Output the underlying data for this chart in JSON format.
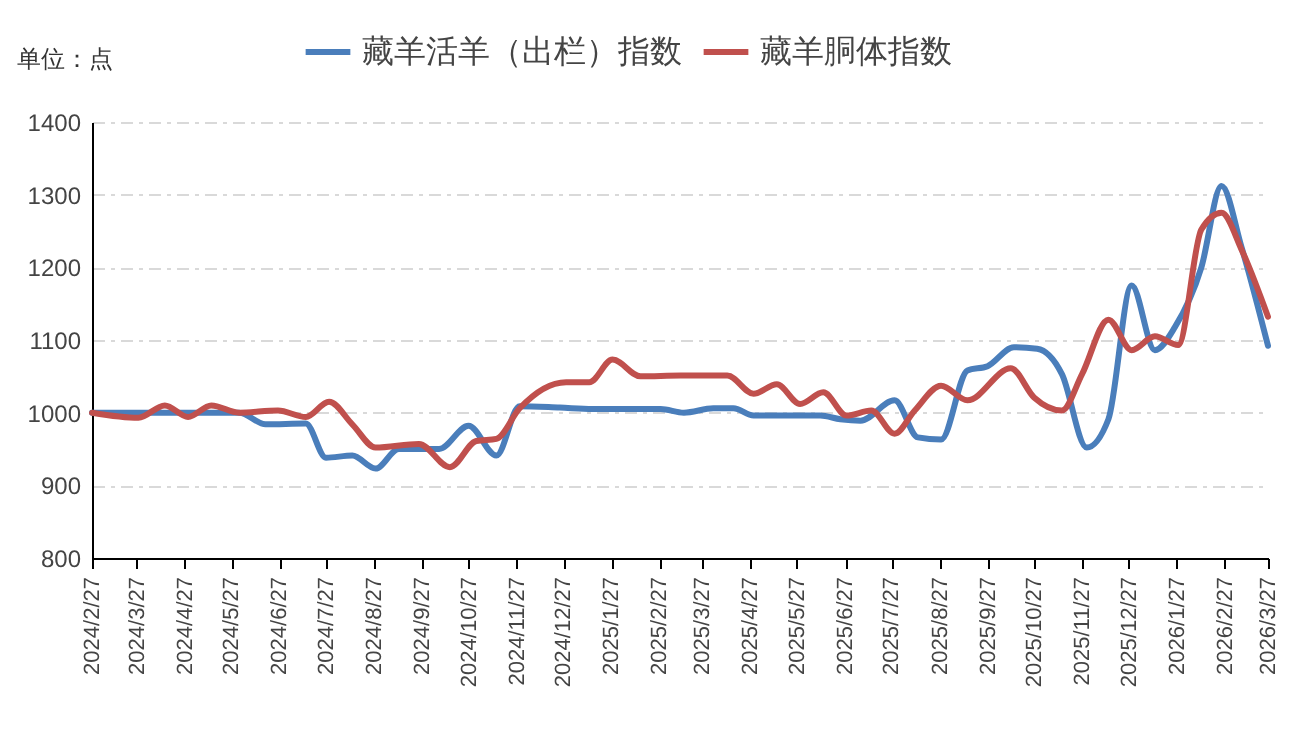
{
  "chart_data": {
    "type": "line",
    "ylabel": "单位：点",
    "legend": "top",
    "grid": "y",
    "marker": "none",
    "line_style": "solid",
    "xlim": [
      "2024-02-27",
      "2026-03-27"
    ],
    "ylim": [
      800,
      1400
    ],
    "yticks": [
      800,
      900,
      1000,
      1100,
      1200,
      1300,
      1400
    ],
    "xticks": [
      {
        "value": "2024-02-27",
        "label": "2024/2/27"
      },
      {
        "value": "2024-03-27",
        "label": "2024/3/27"
      },
      {
        "value": "2024-04-27",
        "label": "2024/4/27"
      },
      {
        "value": "2024-05-27",
        "label": "2024/5/27"
      },
      {
        "value": "2024-06-27",
        "label": "2024/6/27"
      },
      {
        "value": "2024-07-27",
        "label": "2024/7/27"
      },
      {
        "value": "2024-08-27",
        "label": "2024/8/27"
      },
      {
        "value": "2024-09-27",
        "label": "2024/9/27"
      },
      {
        "value": "2024-10-27",
        "label": "2024/10/27"
      },
      {
        "value": "2024-11-27",
        "label": "2024/11/27"
      },
      {
        "value": "2024-12-27",
        "label": "2024/12/27"
      },
      {
        "value": "2025-01-27",
        "label": "2025/1/27"
      },
      {
        "value": "2025-02-27",
        "label": "2025/2/27"
      },
      {
        "value": "2025-03-27",
        "label": "2025/3/27"
      },
      {
        "value": "2025-04-27",
        "label": "2025/4/27"
      },
      {
        "value": "2025-05-27",
        "label": "2025/5/27"
      },
      {
        "value": "2025-06-27",
        "label": "2025/6/27"
      },
      {
        "value": "2025-07-27",
        "label": "2025/7/27"
      },
      {
        "value": "2025-08-27",
        "label": "2025/8/27"
      },
      {
        "value": "2025-09-27",
        "label": "2025/9/27"
      },
      {
        "value": "2025-10-27",
        "label": "2025/10/27"
      },
      {
        "value": "2025-11-27",
        "label": "2025/11/27"
      },
      {
        "value": "2025-12-27",
        "label": "2025/12/27"
      },
      {
        "value": "2026-01-27",
        "label": "2026/1/27"
      },
      {
        "value": "2026-02-27",
        "label": "2026/2/27"
      },
      {
        "value": "2026-03-27",
        "label": "2026/3/27"
      }
    ],
    "series": [
      {
        "name": "藏羊活羊（出栏）指数",
        "color": "#4a7ebb",
        "x": [
          "2024-02-27",
          "2024-06-01",
          "2024-06-18",
          "2024-07-14",
          "2024-07-27",
          "2024-08-13",
          "2024-08-28",
          "2024-09-12",
          "2024-10-08",
          "2024-10-27",
          "2024-11-14",
          "2024-11-29",
          "2024-12-25",
          "2025-01-15",
          "2025-02-28",
          "2025-03-15",
          "2025-04-03",
          "2025-04-16",
          "2025-04-29",
          "2025-06-11",
          "2025-06-24",
          "2025-07-07",
          "2025-07-29",
          "2025-08-13",
          "2025-08-28",
          "2025-09-14",
          "2025-09-27",
          "2025-10-14",
          "2025-10-29",
          "2025-11-14",
          "2025-11-30",
          "2025-12-14",
          "2025-12-29",
          "2026-01-13",
          "2026-01-26",
          "2026-02-12",
          "2026-02-25",
          "2026-03-10",
          "2026-03-27"
        ],
        "values": [
          1000,
          1000,
          984,
          985,
          938,
          941,
          923,
          950,
          950,
          982,
          941,
          1009,
          1007,
          1005,
          1005,
          1000,
          1006,
          1006,
          996,
          996,
          991,
          989,
          1017,
          966,
          963,
          1058,
          1064,
          1090,
          1088,
          1053,
          952,
          991,
          1175,
          1086,
          1118,
          1200,
          1312,
          1227,
          1092
        ]
      },
      {
        "name": "藏羊胴体指数",
        "color": "#c0504d",
        "x": [
          "2024-02-27",
          "2024-03-28",
          "2024-04-14",
          "2024-04-29",
          "2024-05-14",
          "2024-06-01",
          "2024-06-26",
          "2024-07-14",
          "2024-07-29",
          "2024-08-13",
          "2024-08-28",
          "2024-09-25",
          "2024-10-15",
          "2024-11-01",
          "2024-11-14",
          "2024-11-29",
          "2024-12-29",
          "2025-01-13",
          "2025-01-28",
          "2025-02-15",
          "2025-03-13",
          "2025-04-12",
          "2025-04-29",
          "2025-05-14",
          "2025-05-29",
          "2025-06-13",
          "2025-06-28",
          "2025-07-14",
          "2025-07-29",
          "2025-08-11",
          "2025-08-28",
          "2025-09-14",
          "2025-10-12",
          "2025-10-27",
          "2025-11-14",
          "2025-11-27",
          "2025-12-14",
          "2025-12-29",
          "2026-01-13",
          "2026-01-28",
          "2026-02-12",
          "2026-02-25",
          "2026-03-10",
          "2026-03-27"
        ],
        "values": [
          1000,
          993,
          1010,
          994,
          1010,
          1000,
          1003,
          994,
          1015,
          984,
          952,
          957,
          925,
          961,
          964,
          1006,
          1042,
          1042,
          1073,
          1050,
          1051,
          1051,
          1026,
          1039,
          1012,
          1028,
          996,
          1003,
          971,
          1003,
          1037,
          1017,
          1061,
          1021,
          1003,
          1053,
          1128,
          1086,
          1105,
          1093,
          1252,
          1275,
          1224,
          1132
        ]
      }
    ]
  }
}
